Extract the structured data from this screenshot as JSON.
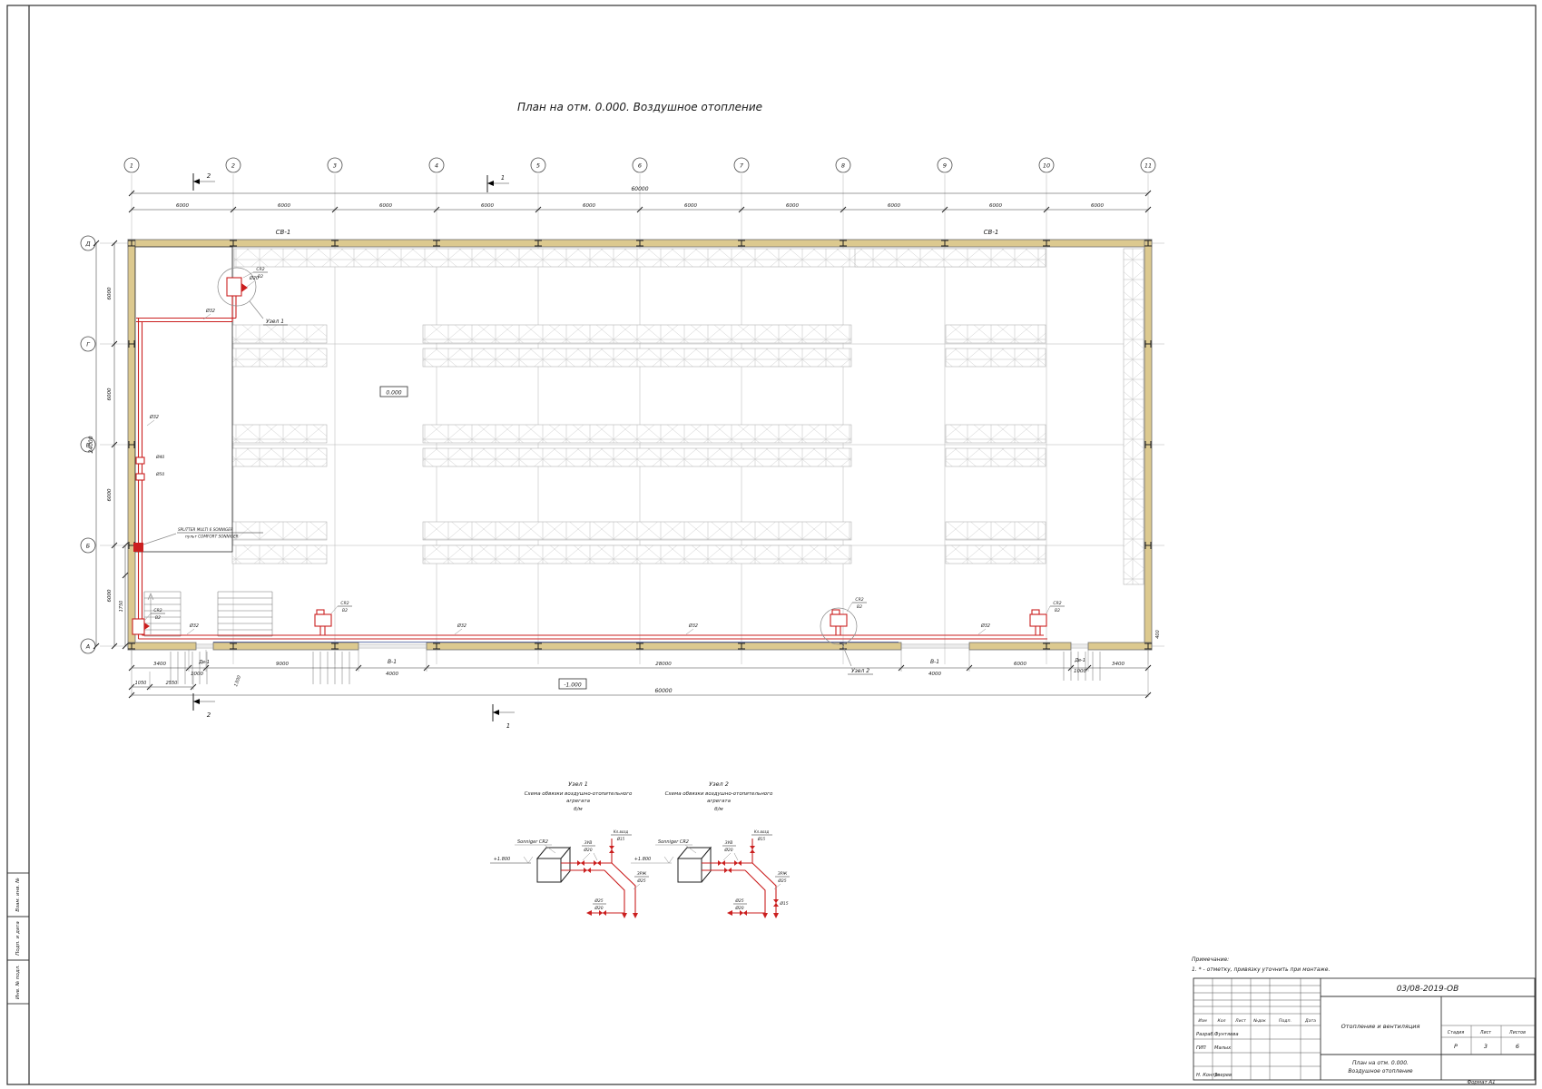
{
  "sheet": {
    "title": "План на отм. 0.000. Воздушное отопление",
    "format_note": "Формат А1"
  },
  "plan": {
    "grid_cols": [
      "1",
      "2",
      "3",
      "4",
      "5",
      "6",
      "7",
      "8",
      "9",
      "10",
      "11"
    ],
    "grid_rows": [
      "Д",
      "Г",
      "В",
      "Б",
      "А"
    ],
    "dims_top": [
      "6000",
      "6000",
      "6000",
      "6000",
      "6000",
      "6000",
      "6000",
      "6000",
      "6000",
      "6000"
    ],
    "dim_top_total": "60000",
    "dims_left": [
      "6000",
      "6000",
      "6000",
      "6000"
    ],
    "dim_left_total": "24000",
    "dim_left_extra": "1750",
    "dims_bottom_row1": [
      "3400",
      "1000",
      "9000",
      "4000",
      "28000",
      "4000",
      "6000",
      "1000",
      "3400"
    ],
    "dims_bottom_row2": [
      "1050",
      "2550"
    ],
    "dim_bottom_rot1": "1300",
    "dim_bottom_rot2": "400",
    "dim_bottom_total": "60000",
    "labels": {
      "truss": "СВ-1",
      "door": "Дв-1",
      "gate": "В-1",
      "level_zero": "0.000",
      "level_minus": "-1.000",
      "node1": "Узел 1",
      "node2": "Узел 2",
      "splitter_l1": "SPLITTER MULTI 6 SONNIGER",
      "splitter_l2": "пульт COMFORT SONNIGER",
      "unit_num": "CR2",
      "unit_den": "В2",
      "d32": "Ø32",
      "d20": "Ø20",
      "d40": "Ø40",
      "d50": "Ø50"
    },
    "section_marks": {
      "s1": "1",
      "s2": "2"
    }
  },
  "details": {
    "nodes": [
      {
        "title": "Узел 1"
      },
      {
        "title": "Узел 2"
      }
    ],
    "subtitle": [
      "Схема обвязки воздушно-отопительного",
      "агрегата",
      "б/м"
    ],
    "labels": {
      "unit": "Sonniger CR2",
      "level": "+1.800",
      "valve_num": "ЗУВ",
      "valve_den": "Ø20",
      "vent_num": "Кл.возд",
      "vent_den": "Ø15",
      "riser_num": "ЗРЖ",
      "riser_den": "Ø25",
      "drain_num": "Ø25",
      "drain_den": "Ø20",
      "drain2": "Ø15"
    }
  },
  "notes": {
    "header": "Примечание:",
    "items": [
      "1. * - отметку, привязку уточнить при монтаже."
    ]
  },
  "title_block": {
    "doc_number": "03/08-2019-ОВ",
    "columns": [
      "Изм",
      "Кол",
      "Лист",
      "№док",
      "Подп.",
      "Дата"
    ],
    "role_rows": [
      {
        "role": "Разраб.",
        "name": "Фунтяева"
      },
      {
        "role": "ГИП",
        "name": "Малых"
      },
      {
        "role": "Н. Контр",
        "name": "Зверев"
      }
    ],
    "project": "Отопление и вентиляция",
    "sheet_name": [
      "План на отм. 0.000.",
      "Воздушное отопление"
    ],
    "stage_cols": [
      "Стадия",
      "Лист",
      "Листов"
    ],
    "stage_vals": [
      "Р",
      "3",
      "6"
    ]
  },
  "side_stamps": [
    "Взам. инв. №",
    "Подп. и дата",
    "Инв. № подл."
  ]
}
